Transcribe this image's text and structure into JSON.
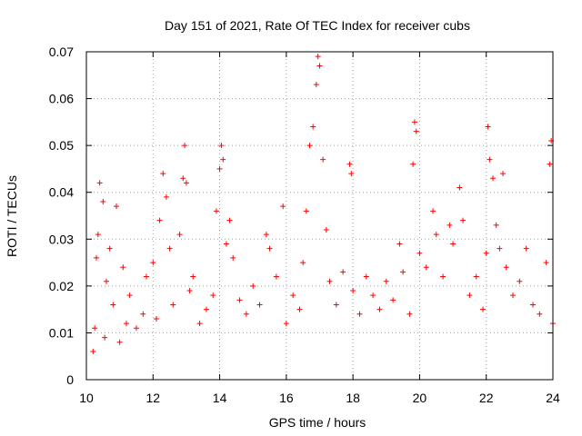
{
  "chart_data": {
    "type": "scatter",
    "title": "Day 151 of 2021, Rate Of TEC Index for receiver cubs",
    "xlabel": "GPS time / hours",
    "ylabel": "ROTI / TECUs",
    "xlim": [
      10,
      24
    ],
    "ylim": [
      0,
      0.07
    ],
    "x_ticks": [
      10,
      12,
      14,
      16,
      18,
      20,
      22,
      24
    ],
    "x_tick_labels": [
      "10",
      "12",
      "14",
      "16",
      "18",
      "20",
      "22",
      "24"
    ],
    "y_ticks": [
      0,
      0.01,
      0.02,
      0.03,
      0.04,
      0.05,
      0.06,
      0.07
    ],
    "y_tick_labels": [
      "0",
      "0.01",
      "0.02",
      "0.03",
      "0.04",
      "0.05",
      "0.06",
      "0.07"
    ],
    "grid": true,
    "marker": "+",
    "marker_color": "#ff0000",
    "series": [
      {
        "points": [
          [
            10.2,
            0.006
          ],
          [
            10.25,
            0.011
          ],
          [
            10.3,
            0.026
          ],
          [
            10.35,
            0.031
          ],
          [
            10.4,
            0.042
          ],
          [
            10.5,
            0.038
          ],
          [
            10.55,
            0.009
          ],
          [
            10.6,
            0.021
          ],
          [
            10.7,
            0.028
          ],
          [
            10.8,
            0.016
          ],
          [
            10.9,
            0.037
          ],
          [
            11.0,
            0.008
          ],
          [
            11.1,
            0.024
          ],
          [
            11.2,
            0.012
          ],
          [
            11.3,
            0.018
          ],
          [
            11.5,
            0.011
          ],
          [
            11.7,
            0.014
          ],
          [
            11.8,
            0.022
          ],
          [
            12.0,
            0.025
          ],
          [
            12.1,
            0.013
          ],
          [
            12.2,
            0.034
          ],
          [
            12.3,
            0.044
          ],
          [
            12.4,
            0.039
          ],
          [
            12.5,
            0.028
          ],
          [
            12.6,
            0.016
          ],
          [
            12.8,
            0.031
          ],
          [
            12.9,
            0.043
          ],
          [
            12.95,
            0.05
          ],
          [
            13.0,
            0.042
          ],
          [
            13.1,
            0.019
          ],
          [
            13.2,
            0.022
          ],
          [
            13.4,
            0.012
          ],
          [
            13.6,
            0.015
          ],
          [
            13.8,
            0.018
          ],
          [
            13.9,
            0.036
          ],
          [
            14.0,
            0.045
          ],
          [
            14.05,
            0.05
          ],
          [
            14.1,
            0.047
          ],
          [
            14.2,
            0.029
          ],
          [
            14.3,
            0.034
          ],
          [
            14.4,
            0.026
          ],
          [
            14.6,
            0.017
          ],
          [
            14.8,
            0.014
          ],
          [
            15.0,
            0.02
          ],
          [
            15.2,
            0.016
          ],
          [
            15.4,
            0.031
          ],
          [
            15.5,
            0.028
          ],
          [
            15.7,
            0.022
          ],
          [
            15.9,
            0.037
          ],
          [
            16.0,
            0.012
          ],
          [
            16.2,
            0.018
          ],
          [
            16.4,
            0.015
          ],
          [
            16.5,
            0.025
          ],
          [
            16.6,
            0.036
          ],
          [
            16.7,
            0.05
          ],
          [
            16.8,
            0.054
          ],
          [
            16.9,
            0.063
          ],
          [
            16.95,
            0.069
          ],
          [
            17.0,
            0.067
          ],
          [
            17.1,
            0.047
          ],
          [
            17.2,
            0.032
          ],
          [
            17.3,
            0.021
          ],
          [
            17.5,
            0.016
          ],
          [
            17.7,
            0.023
          ],
          [
            17.9,
            0.046
          ],
          [
            17.95,
            0.044
          ],
          [
            18.0,
            0.019
          ],
          [
            18.2,
            0.014
          ],
          [
            18.4,
            0.022
          ],
          [
            18.6,
            0.018
          ],
          [
            18.8,
            0.015
          ],
          [
            19.0,
            0.021
          ],
          [
            19.2,
            0.017
          ],
          [
            19.4,
            0.029
          ],
          [
            19.5,
            0.023
          ],
          [
            19.7,
            0.014
          ],
          [
            19.8,
            0.046
          ],
          [
            19.85,
            0.055
          ],
          [
            19.9,
            0.053
          ],
          [
            20.0,
            0.027
          ],
          [
            20.2,
            0.024
          ],
          [
            20.4,
            0.036
          ],
          [
            20.5,
            0.031
          ],
          [
            20.7,
            0.022
          ],
          [
            20.9,
            0.033
          ],
          [
            21.0,
            0.029
          ],
          [
            21.2,
            0.041
          ],
          [
            21.3,
            0.034
          ],
          [
            21.5,
            0.018
          ],
          [
            21.7,
            0.022
          ],
          [
            21.9,
            0.015
          ],
          [
            22.0,
            0.027
          ],
          [
            22.05,
            0.054
          ],
          [
            22.1,
            0.047
          ],
          [
            22.2,
            0.043
          ],
          [
            22.3,
            0.033
          ],
          [
            22.4,
            0.028
          ],
          [
            22.5,
            0.044
          ],
          [
            22.6,
            0.024
          ],
          [
            22.8,
            0.018
          ],
          [
            23.0,
            0.021
          ],
          [
            23.2,
            0.028
          ],
          [
            23.4,
            0.016
          ],
          [
            23.6,
            0.014
          ],
          [
            23.8,
            0.025
          ],
          [
            23.9,
            0.046
          ],
          [
            23.95,
            0.051
          ],
          [
            24.0,
            0.012
          ]
        ]
      }
    ]
  }
}
